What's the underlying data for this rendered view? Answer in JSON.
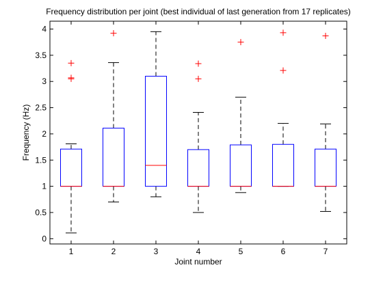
{
  "chart_data": {
    "type": "boxplot",
    "title": "Frequency distribution per joint (best individual of last generation from 17 replicates)",
    "xlabel": "Joint number",
    "ylabel": "Frequency (Hz)",
    "ylim": [
      -0.1,
      4.15
    ],
    "yticks": [
      0,
      0.5,
      1,
      1.5,
      2,
      2.5,
      3,
      3.5,
      4
    ],
    "ytick_labels": [
      "0",
      "0.5",
      "1",
      "1.5",
      "2",
      "2.5",
      "3",
      "3.5",
      "4"
    ],
    "categories": [
      "1",
      "2",
      "3",
      "4",
      "5",
      "6",
      "7"
    ],
    "grid": false,
    "colors": {
      "box": "#0000ff",
      "median": "#ff0000",
      "whisker": "#000000",
      "outlier": "#ff0000"
    },
    "boxes": [
      {
        "category": "1",
        "whisker_low": 0.11,
        "q1": 1.0,
        "median": 1.0,
        "q3": 1.71,
        "whisker_high": 1.81,
        "outliers": [
          3.35,
          3.07,
          3.05
        ]
      },
      {
        "category": "2",
        "whisker_low": 0.7,
        "q1": 1.0,
        "median": 1.0,
        "q3": 2.11,
        "whisker_high": 3.36,
        "outliers": [
          3.92
        ]
      },
      {
        "category": "3",
        "whisker_low": 0.8,
        "q1": 1.0,
        "median": 1.4,
        "q3": 3.1,
        "whisker_high": 3.95,
        "outliers": []
      },
      {
        "category": "4",
        "whisker_low": 0.5,
        "q1": 1.0,
        "median": 1.0,
        "q3": 1.7,
        "whisker_high": 2.41,
        "outliers": [
          3.34,
          3.05
        ]
      },
      {
        "category": "5",
        "whisker_low": 0.88,
        "q1": 1.0,
        "median": 1.0,
        "q3": 1.79,
        "whisker_high": 2.7,
        "outliers": [
          3.75
        ]
      },
      {
        "category": "6",
        "whisker_low": 1.0,
        "q1": 1.0,
        "median": 1.0,
        "q3": 1.8,
        "whisker_high": 2.2,
        "outliers": [
          3.93,
          3.21
        ]
      },
      {
        "category": "7",
        "whisker_low": 0.52,
        "q1": 1.0,
        "median": 1.0,
        "q3": 1.71,
        "whisker_high": 2.19,
        "outliers": [
          3.87
        ]
      }
    ]
  }
}
